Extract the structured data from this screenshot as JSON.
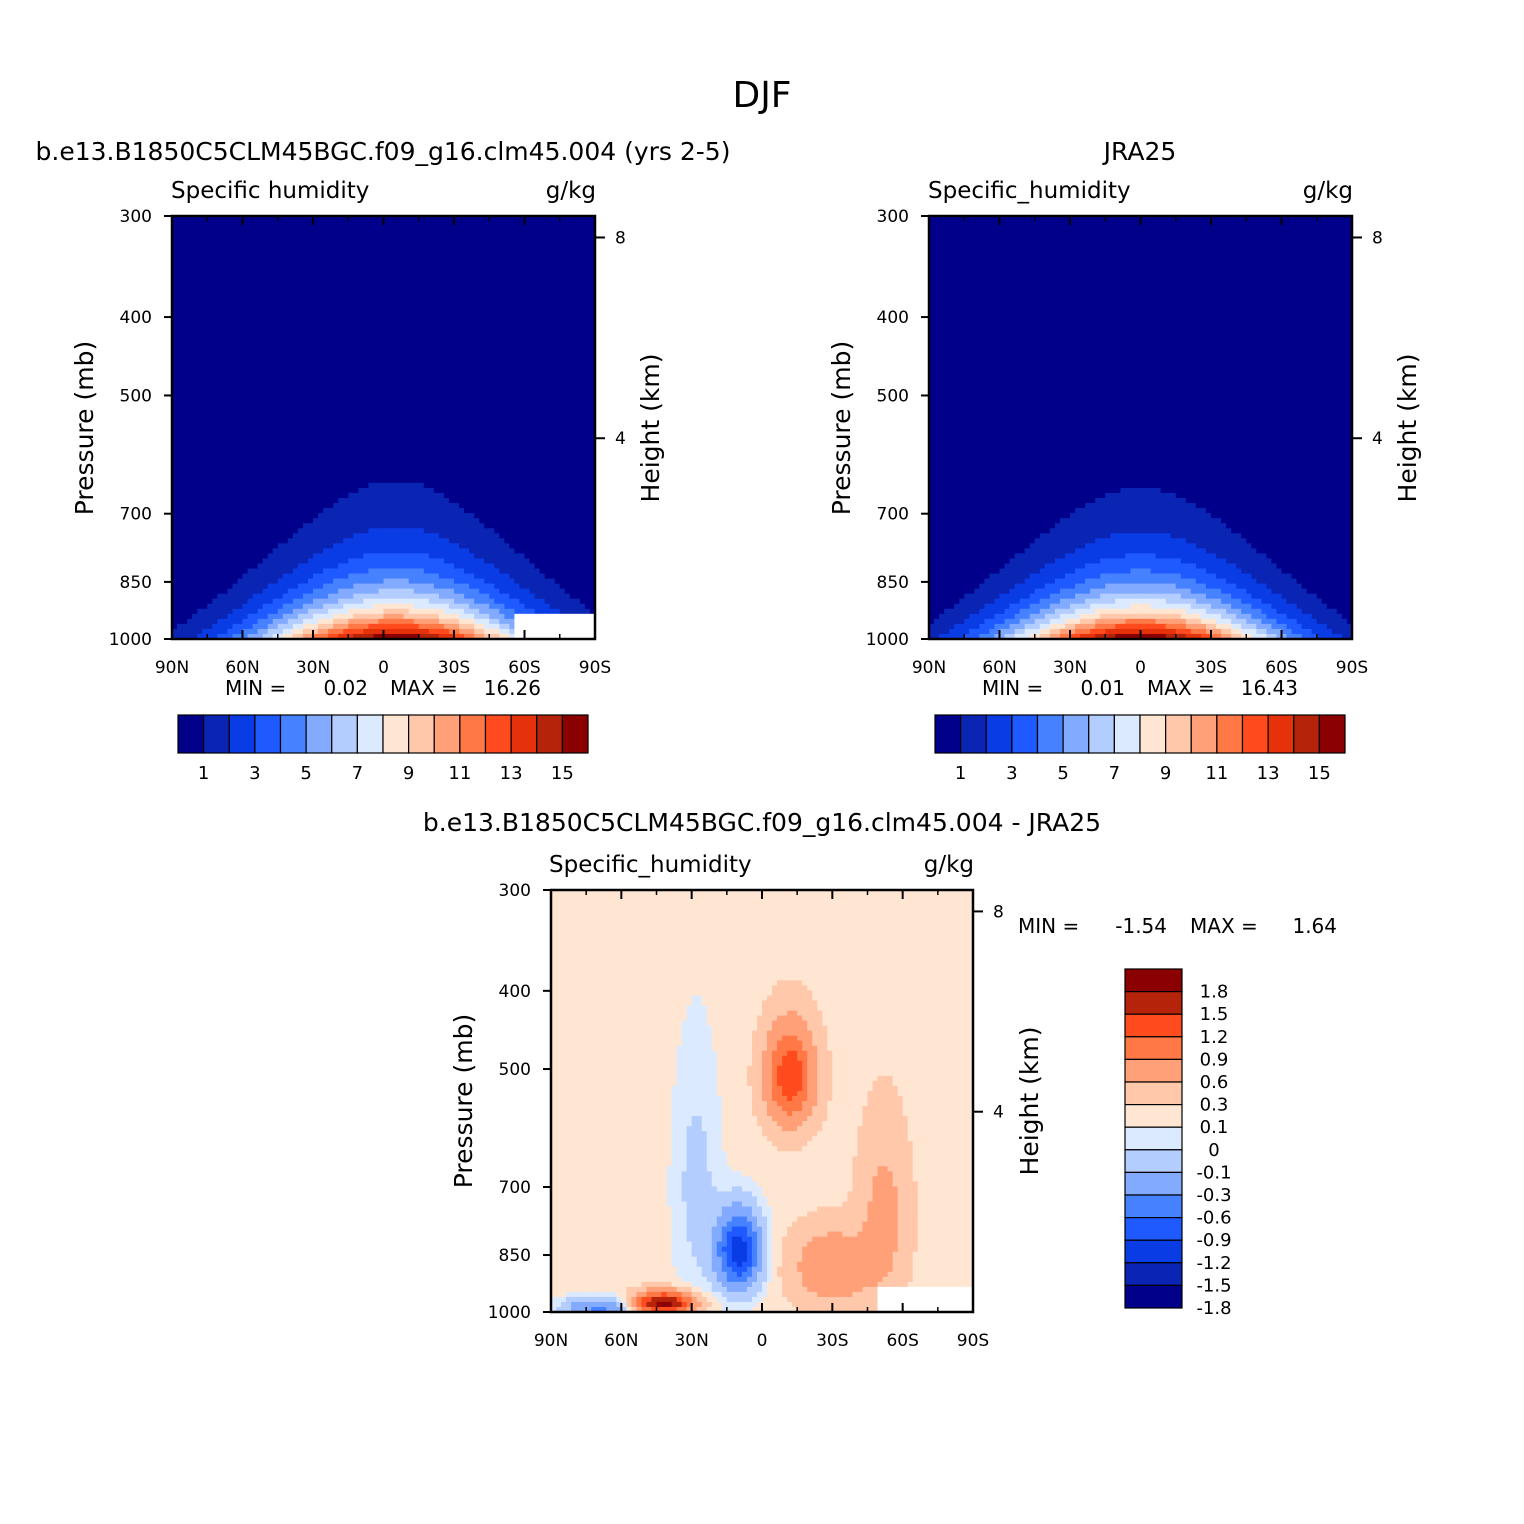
{
  "figure": {
    "title": "DJF"
  },
  "colors": {
    "abs_palette": [
      "#00008b",
      "#0a24b4",
      "#0a3ce6",
      "#1e5aff",
      "#4682ff",
      "#82aaff",
      "#b4cdff",
      "#dceaff",
      "#ffe6d2",
      "#ffc8aa",
      "#ffa078",
      "#ff7846",
      "#ff4b1e",
      "#e6320a",
      "#b4230a",
      "#8b0000"
    ],
    "diff_palette": [
      "#00008b",
      "#0a24b4",
      "#0a3ce6",
      "#1e5aff",
      "#4682ff",
      "#82aaff",
      "#b4cdff",
      "#dceaff",
      "#ffe6d2",
      "#ffc8aa",
      "#ffa078",
      "#ff7846",
      "#ff4b1e",
      "#b4230a",
      "#8b0000"
    ]
  },
  "chart_data": [
    {
      "id": "model",
      "type": "contour",
      "title": "b.e13.B1850C5CLM45BGC.f09_g16.clm45.004 (yrs 2-5)",
      "variable": "Specific humidity",
      "units": "g/kg",
      "xlabel": "",
      "ylabel": "Pressure (mb)",
      "ylabel_right": "Height (km)",
      "x_ticks": [
        "90N",
        "60N",
        "30N",
        "0",
        "30S",
        "60S",
        "90S"
      ],
      "x_tick_values": [
        90,
        60,
        30,
        0,
        -30,
        -60,
        -90
      ],
      "xlim": [
        90,
        -90
      ],
      "y_ticks": [
        "300",
        "400",
        "500",
        "700",
        "850",
        "1000"
      ],
      "y_tick_values": [
        300,
        400,
        500,
        700,
        850,
        1000
      ],
      "ylim": [
        1000,
        300
      ],
      "right_ticks": [
        "8",
        "4"
      ],
      "right_tick_values": [
        8,
        4
      ],
      "min_label": "MIN =",
      "min_value": "0.02",
      "max_label": "MAX =",
      "max_value": "16.26",
      "levels": [
        1,
        2,
        3,
        4,
        5,
        6,
        7,
        8,
        9,
        10,
        11,
        12,
        13,
        14,
        15
      ],
      "colorbar_labels": [
        "1",
        "3",
        "5",
        "7",
        "9",
        "11",
        "13",
        "15"
      ],
      "field": {
        "lat_center": -5,
        "peak": 16.26,
        "p_ref": 1000,
        "p_height": 130
      },
      "missing_region": {
        "lat_from": -55,
        "p_from": 925
      }
    },
    {
      "id": "obs",
      "type": "contour",
      "title": "JRA25",
      "variable": "Specific_humidity",
      "units": "g/kg",
      "xlabel": "",
      "ylabel": "Pressure (mb)",
      "ylabel_right": "Height (km)",
      "x_ticks": [
        "90N",
        "60N",
        "30N",
        "0",
        "30S",
        "60S",
        "90S"
      ],
      "x_tick_values": [
        90,
        60,
        30,
        0,
        -30,
        -60,
        -90
      ],
      "xlim": [
        90,
        -90
      ],
      "y_ticks": [
        "300",
        "400",
        "500",
        "700",
        "850",
        "1000"
      ],
      "y_tick_values": [
        300,
        400,
        500,
        700,
        850,
        1000
      ],
      "ylim": [
        1000,
        300
      ],
      "right_ticks": [
        "8",
        "4"
      ],
      "right_tick_values": [
        8,
        4
      ],
      "min_label": "MIN =",
      "min_value": "0.01",
      "max_label": "MAX =",
      "max_value": "16.43",
      "levels": [
        1,
        2,
        3,
        4,
        5,
        6,
        7,
        8,
        9,
        10,
        11,
        12,
        13,
        14,
        15
      ],
      "colorbar_labels": [
        "1",
        "3",
        "5",
        "7",
        "9",
        "11",
        "13",
        "15"
      ],
      "field": {
        "lat_center": 0,
        "peak": 16.43,
        "p_ref": 1000,
        "p_height": 125
      }
    },
    {
      "id": "diff",
      "type": "contour",
      "title": "b.e13.B1850C5CLM45BGC.f09_g16.clm45.004 - JRA25",
      "variable": "Specific_humidity",
      "units": "g/kg",
      "xlabel": "",
      "ylabel": "Pressure (mb)",
      "ylabel_right": "Height (km)",
      "x_ticks": [
        "90N",
        "60N",
        "30N",
        "0",
        "30S",
        "60S",
        "90S"
      ],
      "x_tick_values": [
        90,
        60,
        30,
        0,
        -30,
        -60,
        -90
      ],
      "xlim": [
        90,
        -90
      ],
      "y_ticks": [
        "300",
        "400",
        "500",
        "700",
        "850",
        "1000"
      ],
      "y_tick_values": [
        300,
        400,
        500,
        700,
        850,
        1000
      ],
      "ylim": [
        1000,
        300
      ],
      "right_ticks": [
        "8",
        "4"
      ],
      "right_tick_values": [
        8,
        4
      ],
      "min_label": "MIN =",
      "min_value": "-1.54",
      "max_label": "MAX =",
      "max_value": "1.64",
      "levels": [
        -1.8,
        -1.5,
        -1.2,
        -0.9,
        -0.6,
        -0.3,
        -0.1,
        0,
        0.1,
        0.3,
        0.6,
        0.9,
        1.2,
        1.5,
        1.8
      ],
      "colorbar_labels": [
        "1.8",
        "1.5",
        "1.2",
        "0.9",
        "0.6",
        "0.3",
        "0.1",
        "0",
        "-0.1",
        "-0.3",
        "-0.6",
        "-0.9",
        "-1.2",
        "-1.5",
        "-1.8"
      ],
      "anomalies": [
        {
          "lat": -12,
          "p": 510,
          "amp": 1.1,
          "sx": 10,
          "sy": 70
        },
        {
          "lat": 10,
          "p": 840,
          "amp": -1.45,
          "sx": 9,
          "sy": 90
        },
        {
          "lat": 42,
          "p": 975,
          "amp": 1.64,
          "sx": 12,
          "sy": 30
        },
        {
          "lat": 70,
          "p": 990,
          "amp": -0.7,
          "sx": 14,
          "sy": 30
        },
        {
          "lat": -30,
          "p": 880,
          "amp": 0.55,
          "sx": 16,
          "sy": 90
        },
        {
          "lat": -52,
          "p": 760,
          "amp": 0.35,
          "sx": 10,
          "sy": 180
        },
        {
          "lat": 28,
          "p": 700,
          "amp": -0.2,
          "sx": 10,
          "sy": 250
        }
      ],
      "base_value": 0.05,
      "missing_region": {
        "lat_from": -50,
        "p_from": 925
      }
    }
  ]
}
